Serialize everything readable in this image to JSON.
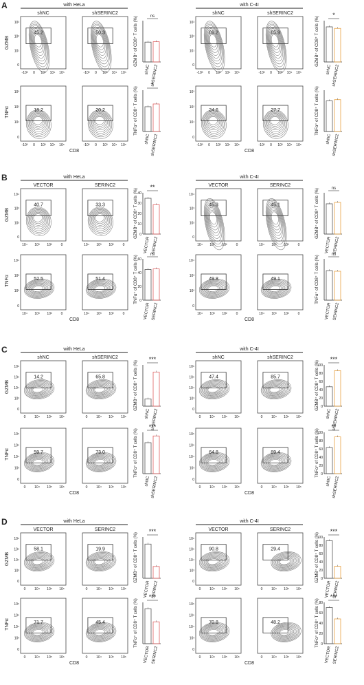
{
  "figure": {
    "panels": [
      {
        "letter": "A",
        "left": {
          "cell_line": "with HeLa",
          "groups": [
            "shNC",
            "shSERINC2"
          ],
          "gzmb_values": [
            "45.2",
            "50.3"
          ],
          "tnfa_values": [
            "18.2",
            "20.2"
          ],
          "gzmb_bars": {
            "significance": "ns",
            "values": [
              48,
              49
            ],
            "ylim": [
              0,
              100
            ],
            "ytick_labels": []
          },
          "tnfa_bars": {
            "significance": "*",
            "values": [
              18,
              20
            ],
            "ylim": [
              0,
              30
            ],
            "ytick_labels": []
          }
        },
        "right": {
          "cell_line": "with C-4I",
          "groups": [
            "shNC",
            "shSERINC2"
          ],
          "gzmb_values": [
            "69.2",
            "65.9"
          ],
          "tnfa_values": [
            "24.6",
            "27.7"
          ],
          "gzmb_bars": {
            "significance": "*",
            "values": [
              68,
              65
            ],
            "ylim": [
              0,
              80
            ],
            "ytick_labels": []
          },
          "tnfa_bars": {
            "significance": "",
            "values": [
              26,
              27
            ],
            "ylim": [
              0,
              35
            ],
            "ytick_labels": []
          }
        },
        "y_axis_labels": [
          "GZMB",
          "TNFα"
        ],
        "gzmb_ticks": [
          "10³",
          "10²",
          "10¹",
          "0"
        ],
        "tnfa_ticks": [
          "10³",
          "10²",
          "10¹",
          "0"
        ],
        "x_ticks": [
          "-10³",
          "0",
          "10³",
          "10⁴",
          "10⁵"
        ],
        "gzmb_bar_ylabel": "GZMB⁺ of CD8⁺ T cells (%)",
        "tnfa_bar_ylabel": "TNFα⁺ of CD8⁺ T cells (%)"
      },
      {
        "letter": "B",
        "left": {
          "cell_line": "with HeLa",
          "groups": [
            "VECTOR",
            "SERINC2"
          ],
          "gzmb_values": [
            "40.7",
            "33.3"
          ],
          "tnfa_values": [
            "52.5",
            "51.4"
          ],
          "gzmb_bars": {
            "significance": "**",
            "values": [
              39,
              32
            ],
            "ylim": [
              0,
              45
            ],
            "ytick_labels": [
              "40",
              "30",
              "20",
              "10",
              "0"
            ]
          },
          "tnfa_bars": {
            "significance": "ns",
            "values": [
              52,
              53
            ],
            "ylim": [
              0,
              70
            ],
            "ytick_labels": [
              "60",
              "40",
              "20",
              "0"
            ]
          }
        },
        "right": {
          "cell_line": "with C-4I",
          "groups": [
            "VECTOR",
            "SERINC2"
          ],
          "gzmb_values": [
            "45.3",
            "45.1"
          ],
          "tnfa_values": [
            "49.8",
            "49.1"
          ],
          "gzmb_bars": {
            "significance": "ns",
            "values": [
              44,
              46
            ],
            "ylim": [
              0,
              60
            ],
            "ytick_labels": []
          },
          "tnfa_bars": {
            "significance": "ns",
            "values": [
              50,
              49
            ],
            "ylim": [
              0,
              70
            ],
            "ytick_labels": []
          }
        },
        "y_axis_labels": [
          "GZMB",
          "TNFα"
        ],
        "gzmb_ticks": [
          "10⁴",
          "10³",
          "10²",
          "0"
        ],
        "tnfa_ticks": [
          "10⁴",
          "10³",
          "10²",
          "0"
        ],
        "x_ticks": [
          "10⁴",
          "10³",
          "10²",
          "0"
        ],
        "gzmb_bar_ylabel": "GZMB⁺ of CD8⁺ T cells (%)",
        "tnfa_bar_ylabel": "TNFα⁺ of CD8⁺ T cells (%)"
      },
      {
        "letter": "C",
        "left": {
          "cell_line": "with HeLa",
          "groups": [
            "shNC",
            "shSERINC2"
          ],
          "gzmb_values": [
            "14.2",
            "65.8"
          ],
          "tnfa_values": [
            "59.7",
            "73.0"
          ],
          "gzmb_bars": {
            "significance": "***",
            "values": [
              14,
              66
            ],
            "ylim": [
              0,
              80
            ],
            "ytick_labels": []
          },
          "tnfa_bars": {
            "significance": "***",
            "values": [
              60,
              73
            ],
            "ylim": [
              0,
              80
            ],
            "ytick_labels": []
          }
        },
        "right": {
          "cell_line": "with C-4I",
          "groups": [
            "shNC",
            "shSERINC2"
          ],
          "gzmb_values": [
            "47.4",
            "85.7"
          ],
          "tnfa_values": [
            "64.8",
            "89.4"
          ],
          "gzmb_bars": {
            "significance": "***",
            "values": [
              47,
              86
            ],
            "ylim": [
              0,
              100
            ],
            "ytick_labels": [
              "100",
              "80",
              "60",
              "40",
              "20",
              "0"
            ]
          },
          "tnfa_bars": {
            "significance": "**",
            "values": [
              63,
              89
            ],
            "ylim": [
              0,
              100
            ],
            "ytick_labels": [
              "100",
              "80",
              "60",
              "40",
              "20",
              "0"
            ]
          }
        },
        "y_axis_labels": [
          "GZMB",
          "TNFα"
        ],
        "gzmb_ticks": [
          "10⁶",
          "10⁵",
          "10⁴",
          "10³",
          "0"
        ],
        "tnfa_ticks": [
          "10⁶",
          "10⁵",
          "10⁴",
          "10³",
          "0"
        ],
        "x_ticks": [
          "0",
          "10⁴",
          "10⁵",
          "10⁶"
        ],
        "gzmb_bar_ylabel": "GZMB⁺ of CD8⁺ T cells (%)",
        "tnfa_bar_ylabel": "TNFα⁺ of CD8⁺ T cells (%)"
      },
      {
        "letter": "D",
        "left": {
          "cell_line": "with HeLa",
          "groups": [
            "VECTOR",
            "SERINC2"
          ],
          "gzmb_values": [
            "58.1",
            "19.9"
          ],
          "tnfa_values": [
            "71.7",
            "45.4"
          ],
          "gzmb_bars": {
            "significance": "***",
            "values": [
              58,
              20
            ],
            "ylim": [
              0,
              70
            ],
            "ytick_labels": []
          },
          "tnfa_bars": {
            "significance": "***",
            "values": [
              72,
              45
            ],
            "ylim": [
              0,
              85
            ],
            "ytick_labels": []
          }
        },
        "right": {
          "cell_line": "with C-4I",
          "groups": [
            "VECTOR",
            "SERINC2"
          ],
          "gzmb_values": [
            "90.8",
            "29.4"
          ],
          "tnfa_values": [
            "70.8",
            "48.2"
          ],
          "gzmb_bars": {
            "significance": "***",
            "values": [
              91,
              29
            ],
            "ylim": [
              0,
              100
            ],
            "ytick_labels": [
              "100",
              "80",
              "60",
              "40",
              "20",
              "0"
            ]
          },
          "tnfa_bars": {
            "significance": "***",
            "values": [
              70,
              48
            ],
            "ylim": [
              0,
              80
            ],
            "ytick_labels": [
              "80",
              "60",
              "40",
              "20",
              "0"
            ]
          }
        },
        "y_axis_labels": [
          "GZMB",
          "TNFα"
        ],
        "gzmb_ticks": [
          "10⁶",
          "10⁵",
          "10⁴",
          "10³",
          "0"
        ],
        "tnfa_ticks": [
          "10⁶",
          "10⁵",
          "10⁴",
          "10³",
          "0"
        ],
        "x_ticks": [
          "0",
          "10⁴",
          "10⁵",
          "10⁶"
        ],
        "gzmb_bar_ylabel": "GZMB⁺ of CD8⁺ T cells (%)",
        "tnfa_bar_ylabel": "TNFα⁺ of CD8⁺ T cells (%)"
      }
    ],
    "x_axis_label": "CD8",
    "colors": {
      "control_bar": "#555555",
      "treated_bar_hela": "#e06060",
      "treated_bar_c4i": "#e8a040",
      "contour": "#777777",
      "gate": "#333333"
    }
  }
}
